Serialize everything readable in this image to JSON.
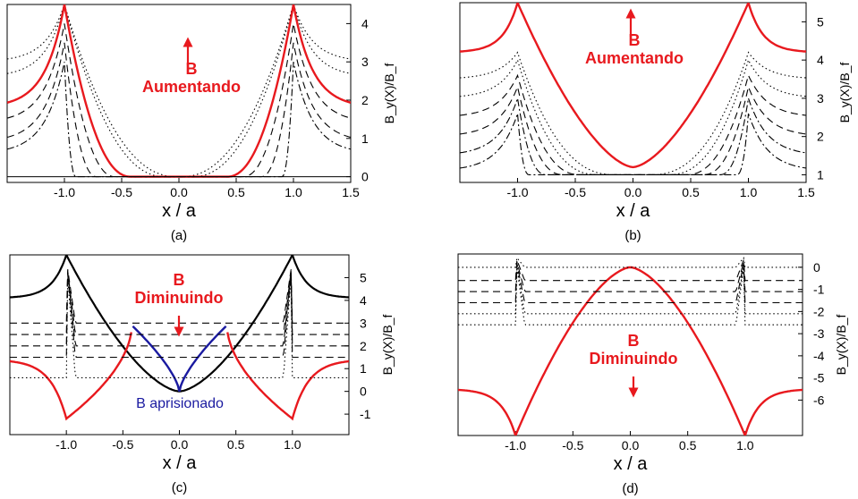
{
  "colors": {
    "highlight": "#e8191e",
    "trapped": "#1a1aa0",
    "ink": "#000000"
  },
  "panels": [
    {
      "id": "a",
      "caption": "(a)",
      "xlabel": "x / a",
      "ylabel": "B_y(X)/B_f",
      "xlim": [
        -1.5,
        1.5
      ],
      "ylim": [
        -0.15,
        4.5
      ],
      "xticks": [
        "-1.0",
        "-0.5",
        "0.0",
        "0.5",
        "1.0",
        "1.5"
      ],
      "xtick_values": [
        -1.0,
        -0.5,
        0.0,
        0.5,
        1.0,
        1.5
      ],
      "yticks": [
        "0",
        "1",
        "2",
        "3",
        "4"
      ],
      "ytick_values": [
        0,
        1,
        2,
        3,
        4
      ],
      "annotation_lines": [
        "B",
        "Aumentando"
      ],
      "arrow": "up"
    },
    {
      "id": "b",
      "caption": "(b)",
      "xlabel": "x / a",
      "ylabel": "B_y(X)/B_f",
      "xlim": [
        -1.5,
        1.5
      ],
      "ylim": [
        0.8,
        5.5
      ],
      "xticks": [
        "-1.0",
        "-0.5",
        "0.0",
        "0.5",
        "1.0",
        "1.5"
      ],
      "xtick_values": [
        -1.0,
        -0.5,
        0.0,
        0.5,
        1.0,
        1.5
      ],
      "yticks": [
        "1",
        "2",
        "3",
        "4",
        "5"
      ],
      "ytick_values": [
        1,
        2,
        3,
        4,
        5
      ],
      "annotation_lines": [
        "B",
        "Aumentando"
      ],
      "arrow": "up"
    },
    {
      "id": "c",
      "caption": "(c)",
      "xlabel": "x / a",
      "ylabel": "B_y(X)/B_f",
      "xlim": [
        -1.5,
        1.5
      ],
      "ylim": [
        -1.9,
        6.0
      ],
      "xticks": [
        "-1.0",
        "-0.5",
        "0.0",
        "0.5",
        "1.0"
      ],
      "xtick_values": [
        -1.0,
        -0.5,
        0.0,
        0.5,
        1.0
      ],
      "yticks": [
        "-1",
        "0",
        "1",
        "2",
        "3",
        "4",
        "5"
      ],
      "ytick_values": [
        -1,
        0,
        1,
        2,
        3,
        4,
        5
      ],
      "annotation_lines": [
        "B",
        "Diminuindo"
      ],
      "arrow": "down",
      "trapped_label": "B aprisionado"
    },
    {
      "id": "d",
      "caption": "(d)",
      "xlabel": "x / a",
      "ylabel": "B_y(X)/B_f",
      "xlim": [
        -1.5,
        1.5
      ],
      "ylim": [
        -7.6,
        0.6
      ],
      "xticks": [
        "-1.0",
        "-0.5",
        "0.0",
        "0.5",
        "1.0"
      ],
      "xtick_values": [
        -1.0,
        -0.5,
        0.0,
        0.5,
        1.0
      ],
      "yticks": [
        "0",
        "-1",
        "-2",
        "-3",
        "-4",
        "-5",
        "-6"
      ],
      "ytick_values": [
        0,
        -1,
        -2,
        -3,
        -4,
        -5,
        -6
      ],
      "annotation_lines": [
        "B",
        "Diminuindo"
      ],
      "arrow": "down"
    }
  ],
  "chart_data": [
    {
      "type": "line",
      "panel": "a",
      "xlim": [
        -1.5,
        1.5
      ],
      "ylim": [
        -0.15,
        4.5
      ],
      "series": [
        {
          "style": "dotted",
          "peak": 4.5,
          "edge": 3.0,
          "b": 0.02
        },
        {
          "style": "dotted",
          "peak": 4.5,
          "edge": 2.6,
          "b": 0.12
        },
        {
          "style": "solid-red",
          "peak": 4.5,
          "edge": 1.8,
          "b": 0.42
        },
        {
          "style": "dashed",
          "peak": 4.0,
          "edge": 1.4,
          "b": 0.56
        },
        {
          "style": "dashed",
          "peak": 3.5,
          "edge": 0.9,
          "b": 0.72
        },
        {
          "style": "dash-dot",
          "peak": 3.0,
          "edge": 0.6,
          "b": 0.9
        }
      ]
    },
    {
      "type": "line",
      "panel": "b",
      "xlim": [
        -1.5,
        1.5
      ],
      "ylim": [
        0.8,
        5.5
      ],
      "series": [
        {
          "style": "solid-red",
          "type": "cusp",
          "peak": 5.5,
          "edge": 4.2,
          "center": 1.2
        },
        {
          "style": "dotted",
          "peak": 4.2,
          "edge": 3.5,
          "b": 0.15
        },
        {
          "style": "dotted",
          "peak": 4.0,
          "edge": 3.0,
          "b": 0.3
        },
        {
          "style": "dashed",
          "peak": 3.6,
          "edge": 2.5,
          "b": 0.45
        },
        {
          "style": "dashed",
          "peak": 3.3,
          "edge": 2.0,
          "b": 0.6
        },
        {
          "style": "dash-dot",
          "peak": 3.0,
          "edge": 1.5,
          "b": 0.75
        },
        {
          "style": "dash-dot",
          "peak": 2.6,
          "edge": 1.1,
          "b": 0.9
        }
      ]
    },
    {
      "type": "line",
      "panel": "c",
      "xlim": [
        -1.5,
        1.5
      ],
      "ylim": [
        -1.9,
        6.0
      ],
      "series": [
        {
          "style": "solid-black",
          "type": "cusp",
          "peak": 6.0,
          "edge": 4.1,
          "center": 0.0
        },
        {
          "style": "solid-red",
          "type": "return",
          "min": -1.2,
          "edge": 1.4,
          "join": 0.42,
          "joinY": 2.9
        },
        {
          "style": "solid-blue",
          "type": "trapped",
          "center": 0.0,
          "join": 0.42,
          "joinY": 2.9
        },
        {
          "style": "dashed",
          "level": 3.0
        },
        {
          "style": "dashed",
          "level": 2.5
        },
        {
          "style": "dashed",
          "level": 2.0
        },
        {
          "style": "dashed",
          "level": 1.5
        },
        {
          "style": "dotted",
          "level": 0.6
        }
      ]
    },
    {
      "type": "line",
      "panel": "d",
      "xlim": [
        -1.5,
        1.5
      ],
      "ylim": [
        -7.6,
        0.6
      ],
      "series": [
        {
          "style": "solid-red",
          "type": "cusp-down",
          "peak": 0.0,
          "edge": -5.5,
          "min": -7.6
        },
        {
          "style": "dotted",
          "level": 0.0
        },
        {
          "style": "dashed",
          "level": -0.6
        },
        {
          "style": "dashed",
          "level": -1.1
        },
        {
          "style": "dashed",
          "level": -1.6
        },
        {
          "style": "dotted",
          "level": -2.1
        },
        {
          "style": "dotted",
          "level": -2.6
        }
      ]
    }
  ]
}
